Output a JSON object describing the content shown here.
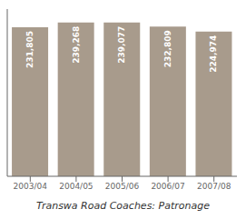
{
  "chart_data": {
    "type": "bar",
    "title": "Transwa Road Coaches: Patronage",
    "categories": [
      "2003/04",
      "2004/05",
      "2005/06",
      "2006/07",
      "2007/08"
    ],
    "values": [
      231805,
      239268,
      239077,
      232809,
      224974
    ],
    "value_labels": [
      "231,805",
      "239,268",
      "239,077",
      "232,809",
      "224,974"
    ],
    "data_labels": true,
    "color": "#a89b8c",
    "ylim": [
      0,
      260000
    ],
    "tick_labels": "x",
    "grid": false
  }
}
